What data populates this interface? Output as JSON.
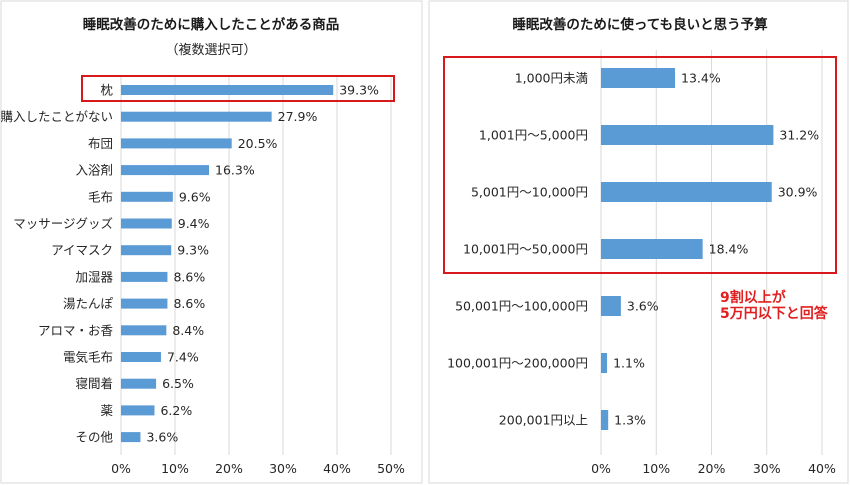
{
  "chart_data": [
    {
      "type": "bar",
      "orientation": "horizontal",
      "title": "睡眠改善のために購入したことがある商品",
      "subtitle": "（複数選択可）",
      "categories": [
        "枕",
        "購入したことがない",
        "布団",
        "入浴剤",
        "毛布",
        "マッサージグッズ",
        "アイマスク",
        "加湿器",
        "湯たんぽ",
        "アロマ・お香",
        "電気毛布",
        "寝間着",
        "薬",
        "その他"
      ],
      "values": [
        39.3,
        27.9,
        20.5,
        16.3,
        9.6,
        9.4,
        9.3,
        8.6,
        8.6,
        8.4,
        7.4,
        6.5,
        6.2,
        3.6
      ],
      "value_labels": [
        "39.3%",
        "27.9%",
        "20.5%",
        "16.3%",
        "9.6%",
        "9.4%",
        "9.3%",
        "8.6%",
        "8.6%",
        "8.4%",
        "7.4%",
        "6.5%",
        "6.2%",
        "3.6%"
      ],
      "xlim": [
        0,
        50
      ],
      "xticks": [
        "0%",
        "10%",
        "20%",
        "30%",
        "40%",
        "50%"
      ],
      "grid": true,
      "highlight": [
        "枕"
      ],
      "bar_color": "#5b9bd5",
      "highlight_color": "#d7191c"
    },
    {
      "type": "bar",
      "orientation": "horizontal",
      "title": "睡眠改善のために使っても良いと思う予算",
      "categories": [
        "1,000円未満",
        "1,001円～5,000円",
        "5,001円～10,000円",
        "10,001円～50,000円",
        "50,001円～100,000円",
        "100,001円～200,000円",
        "200,001円以上"
      ],
      "values": [
        13.4,
        31.2,
        30.9,
        18.4,
        3.6,
        1.1,
        1.3
      ],
      "value_labels": [
        "13.4%",
        "31.2%",
        "30.9%",
        "18.4%",
        "3.6%",
        "1.1%",
        "1.3%"
      ],
      "xlim": [
        0,
        40
      ],
      "xticks": [
        "0%",
        "10%",
        "20%",
        "30%",
        "40%"
      ],
      "grid": true,
      "highlight": [
        "1,000円未満",
        "1,001円～5,000円",
        "5,001円～10,000円",
        "10,001円～50,000円"
      ],
      "annotation": [
        "9割以上が",
        "5万円以下と回答"
      ],
      "bar_color": "#5b9bd5",
      "highlight_color": "#d7191c",
      "annotation_color": "#e02020"
    }
  ]
}
